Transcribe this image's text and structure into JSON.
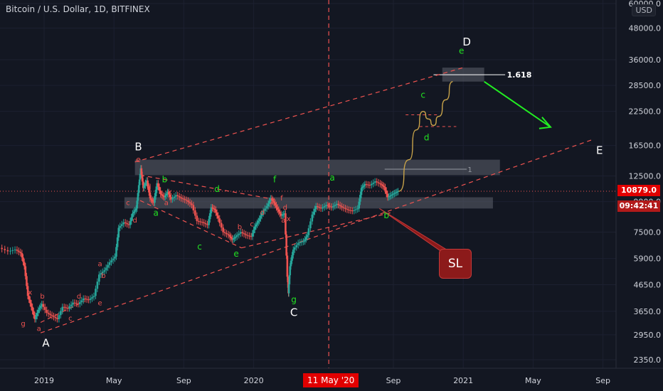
{
  "header": {
    "title": "Bitcoin / U.S. Dollar, 1D, BITFINEX",
    "currency": "USD"
  },
  "price_tag": {
    "value": "10879.0",
    "color": "#e10000"
  },
  "countdown_tag": {
    "value": "09:42:41",
    "color": "#e10000"
  },
  "date_tag": {
    "value": "11 May '20"
  },
  "sl_label": "SL",
  "fib_label": "1.618",
  "range_label": "1",
  "colors": {
    "bull": "#26a69a",
    "bear": "#ef5350",
    "wave_red": "#ef5350",
    "wave_green": "#22e022",
    "projection": "#c9a44a",
    "arrow": "#22ee22",
    "zone": "#5d606b"
  },
  "chart_data": {
    "type": "line",
    "title": "Bitcoin / U.S. Dollar, 1D, BITFINEX",
    "scale": "log",
    "ylim": [
      2100,
      62000
    ],
    "y_ticks": [
      {
        "label": "60000.0",
        "v": 60000
      },
      {
        "label": "48000.0",
        "v": 48000
      },
      {
        "label": "36000.0",
        "v": 36000
      },
      {
        "label": "28500.0",
        "v": 28500
      },
      {
        "label": "22500.0",
        "v": 22500
      },
      {
        "label": "16500.0",
        "v": 16500
      },
      {
        "label": "12500.0",
        "v": 12500
      },
      {
        "label": "9900.0",
        "v": 9900
      },
      {
        "label": "7500.0",
        "v": 7500
      },
      {
        "label": "5900.0",
        "v": 5900
      },
      {
        "label": "4650.0",
        "v": 4650
      },
      {
        "label": "3650.0",
        "v": 3650
      },
      {
        "label": "2950.0",
        "v": 2950
      },
      {
        "label": "2350.0",
        "v": 2350
      }
    ],
    "x_ticks": [
      {
        "label": "2019",
        "m": 0
      },
      {
        "label": "May",
        "m": 4
      },
      {
        "label": "Sep",
        "m": 8
      },
      {
        "label": "2020",
        "m": 12
      },
      {
        "label": "Sep",
        "m": 20
      },
      {
        "label": "2021",
        "m": 24
      },
      {
        "label": "May",
        "m": 28
      },
      {
        "label": "Sep",
        "m": 32
      }
    ],
    "price_series": [
      [
        -2.5,
        6500
      ],
      [
        -2.0,
        6300
      ],
      [
        -1.6,
        6400
      ],
      [
        -1.3,
        6200
      ],
      [
        -1.1,
        5500
      ],
      [
        -0.9,
        4200
      ],
      [
        -0.7,
        3800
      ],
      [
        -0.5,
        3400
      ],
      [
        -0.3,
        3700
      ],
      [
        -0.1,
        3900
      ],
      [
        0.2,
        3600
      ],
      [
        0.5,
        3500
      ],
      [
        0.8,
        3400
      ],
      [
        1.1,
        3800
      ],
      [
        1.4,
        3750
      ],
      [
        1.7,
        3950
      ],
      [
        2.0,
        3900
      ],
      [
        2.3,
        4100
      ],
      [
        2.6,
        4050
      ],
      [
        2.9,
        4200
      ],
      [
        3.2,
        5100
      ],
      [
        3.5,
        5300
      ],
      [
        3.8,
        5700
      ],
      [
        4.1,
        6000
      ],
      [
        4.3,
        7800
      ],
      [
        4.6,
        8200
      ],
      [
        4.9,
        8000
      ],
      [
        5.1,
        8900
      ],
      [
        5.3,
        9300
      ],
      [
        5.45,
        11500
      ],
      [
        5.55,
        13400
      ],
      [
        5.7,
        11200
      ],
      [
        5.9,
        12000
      ],
      [
        6.1,
        10200
      ],
      [
        6.3,
        9800
      ],
      [
        6.5,
        11700
      ],
      [
        6.7,
        10600
      ],
      [
        6.9,
        10300
      ],
      [
        7.1,
        10800
      ],
      [
        7.3,
        10100
      ],
      [
        7.6,
        10500
      ],
      [
        7.9,
        10200
      ],
      [
        8.2,
        10000
      ],
      [
        8.5,
        9600
      ],
      [
        8.8,
        8300
      ],
      [
        9.1,
        8200
      ],
      [
        9.4,
        8000
      ],
      [
        9.6,
        9400
      ],
      [
        9.8,
        9200
      ],
      [
        10.0,
        8500
      ],
      [
        10.3,
        7500
      ],
      [
        10.6,
        7300
      ],
      [
        10.8,
        7000
      ],
      [
        11.0,
        7200
      ],
      [
        11.3,
        7500
      ],
      [
        11.6,
        7300
      ],
      [
        11.9,
        7200
      ],
      [
        12.1,
        7900
      ],
      [
        12.3,
        8300
      ],
      [
        12.5,
        8900
      ],
      [
        12.8,
        9500
      ],
      [
        13.0,
        10200
      ],
      [
        13.2,
        9800
      ],
      [
        13.4,
        9200
      ],
      [
        13.6,
        8700
      ],
      [
        13.8,
        8900
      ],
      [
        13.95,
        5000
      ],
      [
        14.0,
        4300
      ],
      [
        14.1,
        5500
      ],
      [
        14.3,
        6400
      ],
      [
        14.6,
        6800
      ],
      [
        14.9,
        6900
      ],
      [
        15.1,
        7300
      ],
      [
        15.4,
        8800
      ],
      [
        15.6,
        9500
      ],
      [
        15.9,
        9300
      ],
      [
        16.2,
        9600
      ],
      [
        16.5,
        9400
      ],
      [
        16.8,
        9700
      ],
      [
        17.1,
        9400
      ],
      [
        17.4,
        9200
      ],
      [
        17.7,
        9100
      ],
      [
        18.0,
        9300
      ],
      [
        18.2,
        11200
      ],
      [
        18.4,
        11600
      ],
      [
        18.7,
        11500
      ],
      [
        19.0,
        11900
      ],
      [
        19.3,
        11600
      ],
      [
        19.5,
        11300
      ],
      [
        19.7,
        10300
      ],
      [
        19.9,
        10500
      ],
      [
        20.1,
        10700
      ],
      [
        20.3,
        10879
      ]
    ],
    "projection": [
      [
        20.3,
        10879
      ],
      [
        20.9,
        14500
      ],
      [
        21.3,
        19000
      ],
      [
        21.7,
        22500
      ],
      [
        22.0,
        21000
      ],
      [
        22.3,
        19800
      ],
      [
        22.6,
        21500
      ],
      [
        23.0,
        25000
      ],
      [
        23.4,
        29500
      ]
    ],
    "wave_labels": [
      {
        "t": "A",
        "m": 0.1,
        "v": 2650,
        "c": "white",
        "s": 15
      },
      {
        "t": "B",
        "m": 5.4,
        "v": 15800,
        "c": "white",
        "s": 15
      },
      {
        "t": "C",
        "m": 14.3,
        "v": 3500,
        "c": "white",
        "s": 15
      },
      {
        "t": "D",
        "m": 24.2,
        "v": 41000,
        "c": "white",
        "s": 15
      },
      {
        "t": "E",
        "m": 31.8,
        "v": 15300,
        "c": "white",
        "s": 15
      },
      {
        "t": "e",
        "m": 5.4,
        "v": 14200,
        "c": "red",
        "s": 11
      },
      {
        "t": "b",
        "m": 6.9,
        "v": 11800,
        "c": "green",
        "s": 12
      },
      {
        "t": "a",
        "m": 6.4,
        "v": 8700,
        "c": "green",
        "s": 12
      },
      {
        "t": "c",
        "m": 8.9,
        "v": 6400,
        "c": "green",
        "s": 12
      },
      {
        "t": "d",
        "m": 9.9,
        "v": 10800,
        "c": "green",
        "s": 12
      },
      {
        "t": "e",
        "m": 11.0,
        "v": 6000,
        "c": "green",
        "s": 12
      },
      {
        "t": "f",
        "m": 13.2,
        "v": 11800,
        "c": "green",
        "s": 12
      },
      {
        "t": "g",
        "m": 14.3,
        "v": 3950,
        "c": "green",
        "s": 12
      },
      {
        "t": "a",
        "m": 16.5,
        "v": 12000,
        "c": "green",
        "s": 12
      },
      {
        "t": "b",
        "m": 19.6,
        "v": 8500,
        "c": "green",
        "s": 12
      },
      {
        "t": "c",
        "m": 21.7,
        "v": 25500,
        "c": "green",
        "s": 12
      },
      {
        "t": "d",
        "m": 21.9,
        "v": 17300,
        "c": "green",
        "s": 12
      },
      {
        "t": "e",
        "m": 23.9,
        "v": 38000,
        "c": "green",
        "s": 12
      },
      {
        "t": "f",
        "m": -2.7,
        "v": 8000,
        "c": "red",
        "s": 10
      },
      {
        "t": "g",
        "m": -1.2,
        "v": 3200,
        "c": "red",
        "s": 10
      },
      {
        "t": "x",
        "m": -0.8,
        "v": 4250,
        "c": "red",
        "s": 10
      },
      {
        "t": "b",
        "m": -0.1,
        "v": 4100,
        "c": "red",
        "s": 10
      },
      {
        "t": "a",
        "m": -0.3,
        "v": 3050,
        "c": "red",
        "s": 10
      },
      {
        "t": "c",
        "m": 1.5,
        "v": 3350,
        "c": "red",
        "s": 10
      },
      {
        "t": "d",
        "m": 2.0,
        "v": 4100,
        "c": "red",
        "s": 10
      },
      {
        "t": "e",
        "m": 3.2,
        "v": 3850,
        "c": "red",
        "s": 10
      },
      {
        "t": "a",
        "m": 3.2,
        "v": 5500,
        "c": "red",
        "s": 10
      },
      {
        "t": "b",
        "m": 3.4,
        "v": 4950,
        "c": "red",
        "s": 10
      },
      {
        "t": "c",
        "m": 4.8,
        "v": 9600,
        "c": "red",
        "s": 10
      },
      {
        "t": "d",
        "m": 5.2,
        "v": 8200,
        "c": "red",
        "s": 10
      },
      {
        "t": "c",
        "m": 6.2,
        "v": 9800,
        "c": "red",
        "s": 10
      },
      {
        "t": "d",
        "m": 6.0,
        "v": 11100,
        "c": "red",
        "s": 10
      },
      {
        "t": "x",
        "m": 7.2,
        "v": 10600,
        "c": "red",
        "s": 10
      },
      {
        "t": "a",
        "m": 7.0,
        "v": 9600,
        "c": "red",
        "s": 10
      },
      {
        "t": "b",
        "m": 11.2,
        "v": 7700,
        "c": "red",
        "s": 10
      },
      {
        "t": "c",
        "m": 11.9,
        "v": 7900,
        "c": "red",
        "s": 10
      },
      {
        "t": "d",
        "m": 12.5,
        "v": 8800,
        "c": "red",
        "s": 10
      },
      {
        "t": "f",
        "m": 13.0,
        "v": 9400,
        "c": "red",
        "s": 10
      },
      {
        "t": "d",
        "m": 13.8,
        "v": 9200,
        "c": "red",
        "s": 10
      },
      {
        "t": "f",
        "m": 13.6,
        "v": 10000,
        "c": "red",
        "s": 10
      },
      {
        "t": "a",
        "m": 13.7,
        "v": 8200,
        "c": "red",
        "s": 10
      },
      {
        "t": "x",
        "m": 14.0,
        "v": 8300,
        "c": "red",
        "s": 10
      }
    ],
    "channel_upper": [
      [
        5.2,
        14200
      ],
      [
        24.0,
        33500
      ]
    ],
    "channel_lower": [
      [
        -0.2,
        3000
      ],
      [
        31.5,
        17500
      ]
    ],
    "triangle_lines": [
      [
        [
          5.5,
          12600
        ],
        [
          13.2,
          10100
        ]
      ],
      [
        [
          5.5,
          10000
        ],
        [
          11.3,
          6500
        ]
      ],
      [
        [
          11.3,
          6500
        ],
        [
          20.0,
          9000
        ]
      ],
      [
        [
          -0.2,
          3300
        ],
        [
          2.3,
          4000
        ]
      ]
    ],
    "zones": [
      {
        "m0": 5.2,
        "m1": 26.1,
        "v0": 12600,
        "v1": 14500
      },
      {
        "m0": 4.6,
        "m1": 25.7,
        "v0": 9300,
        "v1": 10300
      },
      {
        "m0": 22.8,
        "m1": 25.2,
        "v0": 29500,
        "v1": 33500
      }
    ],
    "sl_line": [
      [
        19.2,
        9300
      ],
      [
        23.3,
        6200
      ]
    ],
    "green_arrow": [
      [
        25.2,
        29500
      ],
      [
        29.0,
        19500
      ]
    ],
    "date_line_m": 16.3
  }
}
